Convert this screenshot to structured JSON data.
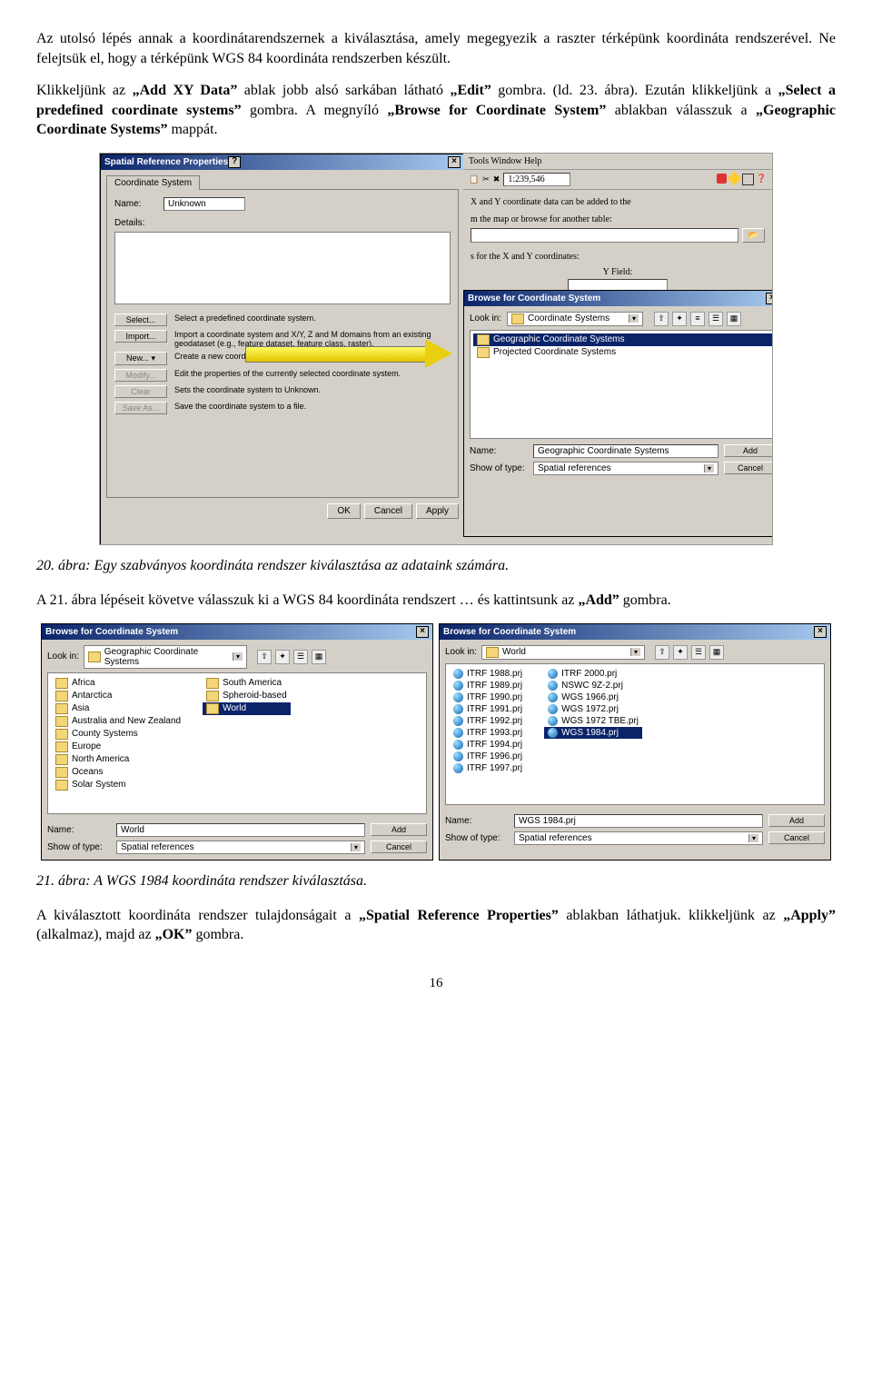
{
  "para1": "Az utolsó lépés annak a koordinátarendszernek a kiválasztása, amely megegyezik a raszter térképünk koordináta rendszerével. Ne felejtsük el, hogy a térképünk WGS 84 koordináta rendszerben készült.",
  "para2_pre": "Klikkeljünk az ",
  "para2_q1": "„Add XY Data”",
  "para2_mid1": " ablak jobb alsó sarkában látható ",
  "para2_q2": "„Edit”",
  "para2_mid2": " gombra. (ld. 23. ábra). Ezután klikkeljünk a ",
  "para2_q3": "„Select a predefined coordinate systems”",
  "para2_mid3": " gombra. A megnyíló ",
  "para2_q4": "„Browse for Coordinate System”",
  "para2_mid4": " ablakban válasszuk a ",
  "para2_q5": "„Geographic Coordinate Systems”",
  "para2_end": " mappát.",
  "caption20": "20. ábra: Egy szabványos koordináta rendszer kiválasztása az adataink számára.",
  "para3_pre": "A 21. ábra lépéseit követve válasszuk ki a WGS 84 koordináta rendszert … és kattintsunk az ",
  "para3_q1": "„Add”",
  "para3_end": " gombra.",
  "caption21": "21. ábra: A WGS 1984 koordináta rendszer kiválasztása.",
  "para4_pre": "A kiválasztott koordináta rendszer tulajdonságait a ",
  "para4_q1": "„Spatial Reference Properties”",
  "para4_mid1": " ablakban láthatjuk. klikkeljünk az ",
  "para4_q2": "„Apply”",
  "para4_mid2": " (alkalmaz), majd az ",
  "para4_q3": "„OK”",
  "para4_end": " gombra.",
  "page_num": "16",
  "fig20": {
    "srp_title": "Spatial Reference Properties",
    "tab": "Coordinate System",
    "name_label": "Name:",
    "name_value": "Unknown",
    "details_label": "Details:",
    "actions": {
      "select": {
        "btn": "Select...",
        "desc": "Select a predefined coordinate system."
      },
      "import": {
        "btn": "Import...",
        "desc": "Import a coordinate system and X/Y, Z and M domains from an existing geodataset (e.g., feature dataset, feature class, raster)."
      },
      "new": {
        "btn": "New...  ▾",
        "desc": "Create a new coordinate system."
      },
      "modify": {
        "btn": "Modify...",
        "desc": "Edit the properties of the currently selected coordinate system."
      },
      "clear": {
        "btn": "Clear",
        "desc": "Sets the coordinate system to Unknown."
      },
      "saveas": {
        "btn": "Save As...",
        "desc": "Save the coordinate system to a file."
      }
    },
    "ok": "OK",
    "cancel": "Cancel",
    "apply": "Apply",
    "menubar": "Tools   Window   Help",
    "scale": "1:239,546",
    "addxy_line1": "X and Y coordinate data can be added to the",
    "addxy_line2": "m the map or browse for another table:",
    "addxy_line3": "s for the X and Y coordinates:",
    "yfield": "Y Field:",
    "browse_title": "Browse for Coordinate System",
    "lookin_label": "Look in:",
    "lookin_value": "Coordinate Systems",
    "list": {
      "geo": "Geographic Coordinate Systems",
      "proj": "Projected Coordinate Systems"
    },
    "name_label2": "Name:",
    "name_value2": "Geographic Coordinate Systems",
    "show_label": "Show of type:",
    "show_value": "Spatial references",
    "add": "Add",
    "cancel2": "Cancel"
  },
  "fig21a": {
    "title": "Browse for Coordinate System",
    "lookin_label": "Look in:",
    "lookin_value": "Geographic Coordinate Systems",
    "col1": [
      "Africa",
      "Antarctica",
      "Asia",
      "Australia and New Zealand",
      "County Systems",
      "Europe",
      "North America",
      "Oceans",
      "Solar System"
    ],
    "col2": [
      "South America",
      "Spheroid-based"
    ],
    "col2_sel": "World",
    "name_label": "Name:",
    "name_value": "World",
    "show_label": "Show of type:",
    "show_value": "Spatial references",
    "add": "Add",
    "cancel": "Cancel"
  },
  "fig21b": {
    "title": "Browse for Coordinate System",
    "lookin_label": "Look in:",
    "lookin_value": "World",
    "col1": [
      "ITRF 1988.prj",
      "ITRF 1989.prj",
      "ITRF 1990.prj",
      "ITRF 1991.prj",
      "ITRF 1992.prj",
      "ITRF 1993.prj",
      "ITRF 1994.prj",
      "ITRF 1996.prj",
      "ITRF 1997.prj"
    ],
    "col2": [
      "ITRF 2000.prj",
      "NSWC 9Z-2.prj",
      "WGS 1966.prj",
      "WGS 1972.prj",
      "WGS 1972 TBE.prj"
    ],
    "col2_sel": "WGS 1984.prj",
    "name_label": "Name:",
    "name_value": "WGS 1984.prj",
    "show_label": "Show of type:",
    "show_value": "Spatial references",
    "add": "Add",
    "cancel": "Cancel"
  }
}
